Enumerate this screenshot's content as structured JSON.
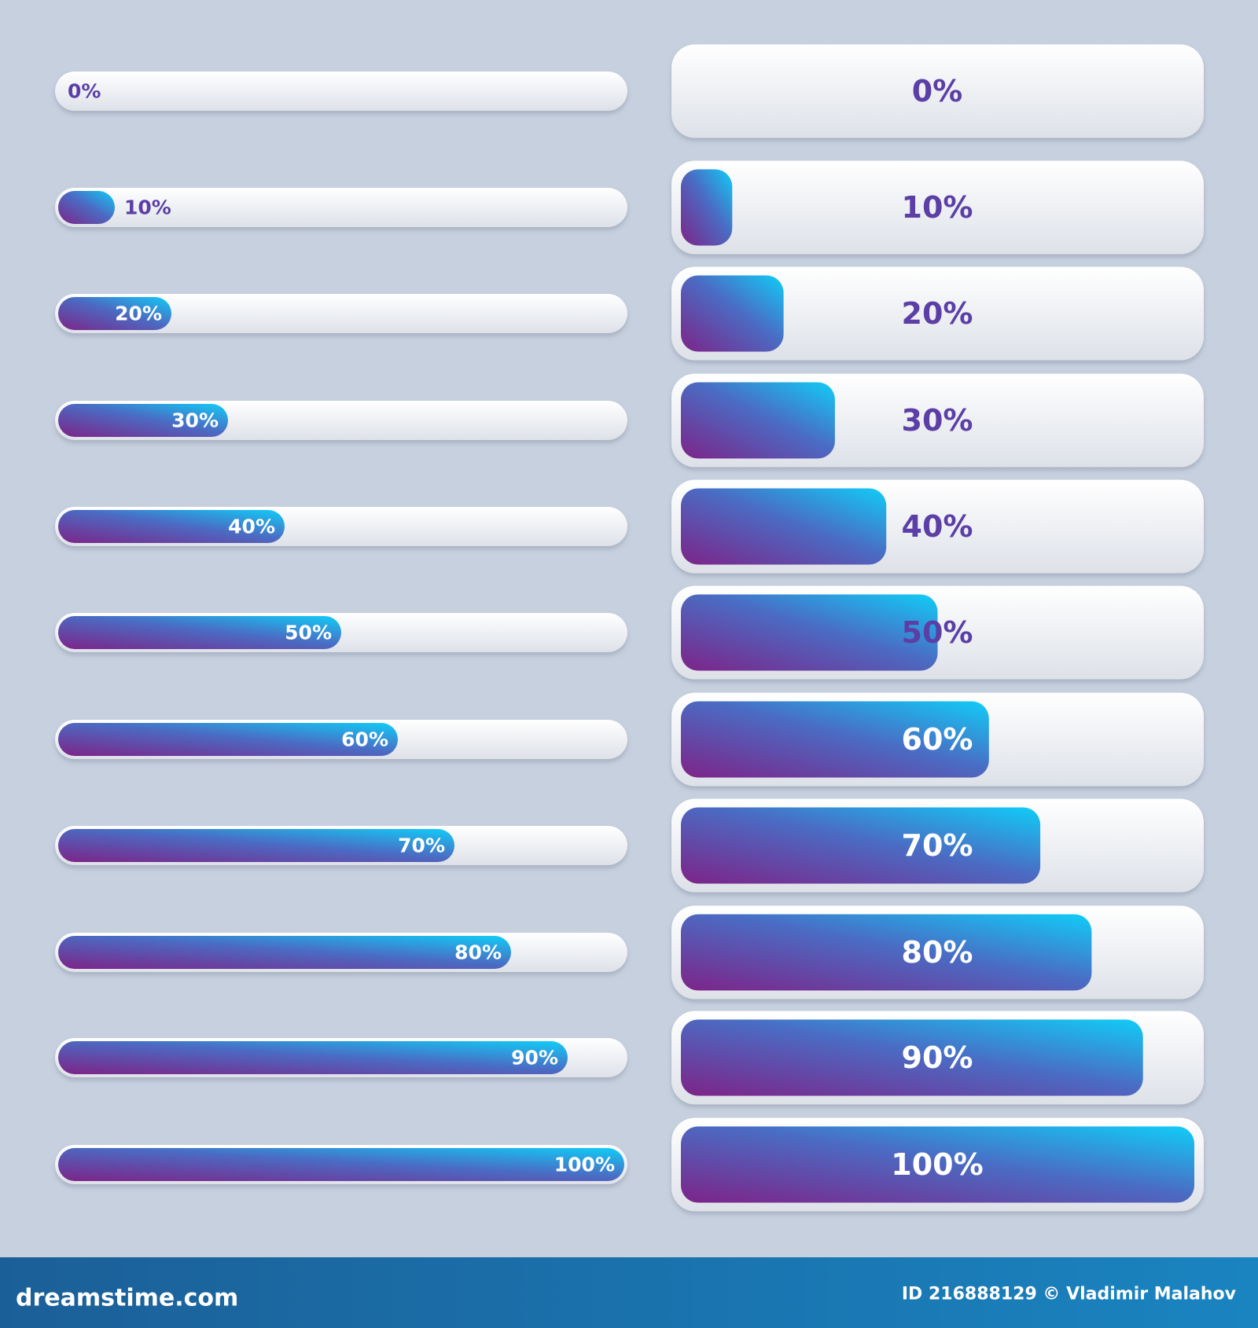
{
  "progress": {
    "values": [
      0,
      10,
      20,
      30,
      40,
      50,
      60,
      70,
      80,
      90,
      100
    ],
    "value_labels": [
      "0%",
      "10%",
      "20%",
      "30%",
      "40%",
      "50%",
      "60%",
      "70%",
      "80%",
      "90%",
      "100%"
    ],
    "range": [
      0,
      100
    ]
  },
  "footer": {
    "site": "dreamstime.com",
    "credit": "ID 216888129 © Vladimir Malahov"
  }
}
